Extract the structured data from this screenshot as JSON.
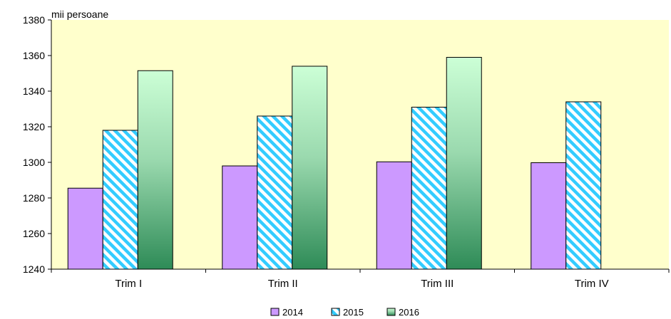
{
  "chart_data": {
    "type": "bar",
    "unit_label": "mii persoane",
    "categories": [
      "Trim I",
      "Trim II",
      "Trim III",
      "Trim IV"
    ],
    "ylim": [
      1240,
      1380
    ],
    "yticks": [
      1240,
      1260,
      1280,
      1300,
      1320,
      1340,
      1360,
      1380
    ],
    "grid": false,
    "legend_position": "bottom",
    "series": [
      {
        "name": "2014",
        "values": [
          1285.5,
          1298,
          1300.3,
          1299.8
        ],
        "color": "#cc99ff",
        "fill": "solid"
      },
      {
        "name": "2015",
        "values": [
          1318,
          1326,
          1331,
          1334
        ],
        "color": "#33ccff",
        "fill": "hatch"
      },
      {
        "name": "2016",
        "values": [
          1351.5,
          1354,
          1359,
          null
        ],
        "color": "#2e8b57",
        "fill": "gradient"
      }
    ],
    "plot_background": "#ffffcc"
  }
}
